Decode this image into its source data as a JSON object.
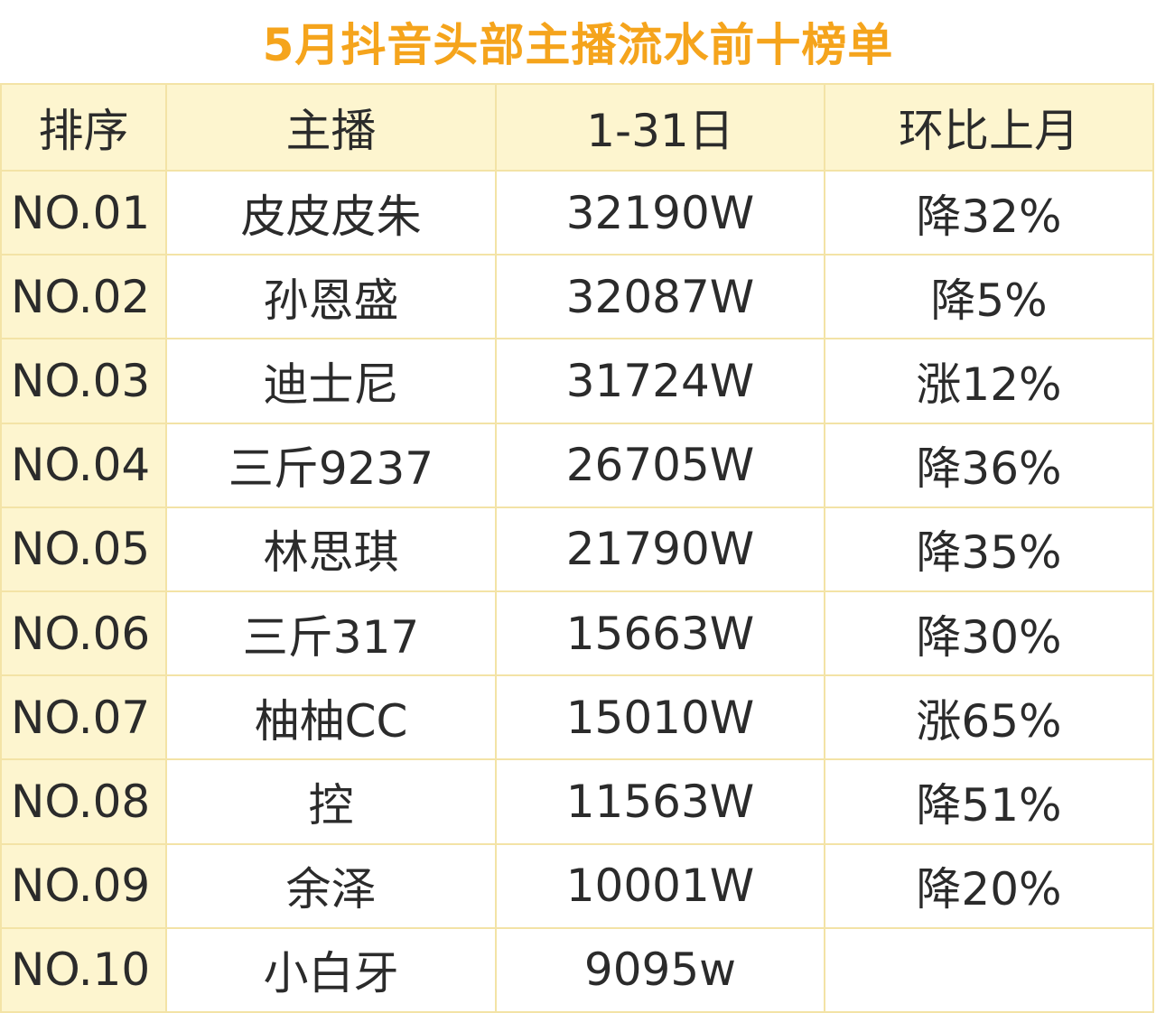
{
  "title": "5月抖音头部主播流水前十榜单",
  "headers": [
    "排序",
    "主播",
    "1-31日",
    "环比上月"
  ],
  "rows": [
    {
      "rank": "NO.01",
      "anchor": "皮皮皮朱",
      "revenue": "32190W",
      "mom": "降32%"
    },
    {
      "rank": "NO.02",
      "anchor": "孙恩盛",
      "revenue": "32087W",
      "mom": "降5%"
    },
    {
      "rank": "NO.03",
      "anchor": "迪士尼",
      "revenue": "31724W",
      "mom": "涨12%"
    },
    {
      "rank": "NO.04",
      "anchor": "三斤9237",
      "revenue": "26705W",
      "mom": "降36%"
    },
    {
      "rank": "NO.05",
      "anchor": "林思琪",
      "revenue": "21790W",
      "mom": "降35%"
    },
    {
      "rank": "NO.06",
      "anchor": "三斤317",
      "revenue": "15663W",
      "mom": "降30%"
    },
    {
      "rank": "NO.07",
      "anchor": "柚柚CC",
      "revenue": "15010W",
      "mom": "涨65%"
    },
    {
      "rank": "NO.08",
      "anchor": "控",
      "revenue": "11563W",
      "mom": "降51%"
    },
    {
      "rank": "NO.09",
      "anchor": "余泽",
      "revenue": "10001W",
      "mom": "降20%"
    },
    {
      "rank": "NO.10",
      "anchor": "小白牙",
      "revenue": "9095w",
      "mom": ""
    }
  ],
  "colors": {
    "title": "#f5a41c",
    "header_background": "#fdf5cf",
    "grid_line": "#f3e3a6",
    "text": "#2b2b2b"
  }
}
